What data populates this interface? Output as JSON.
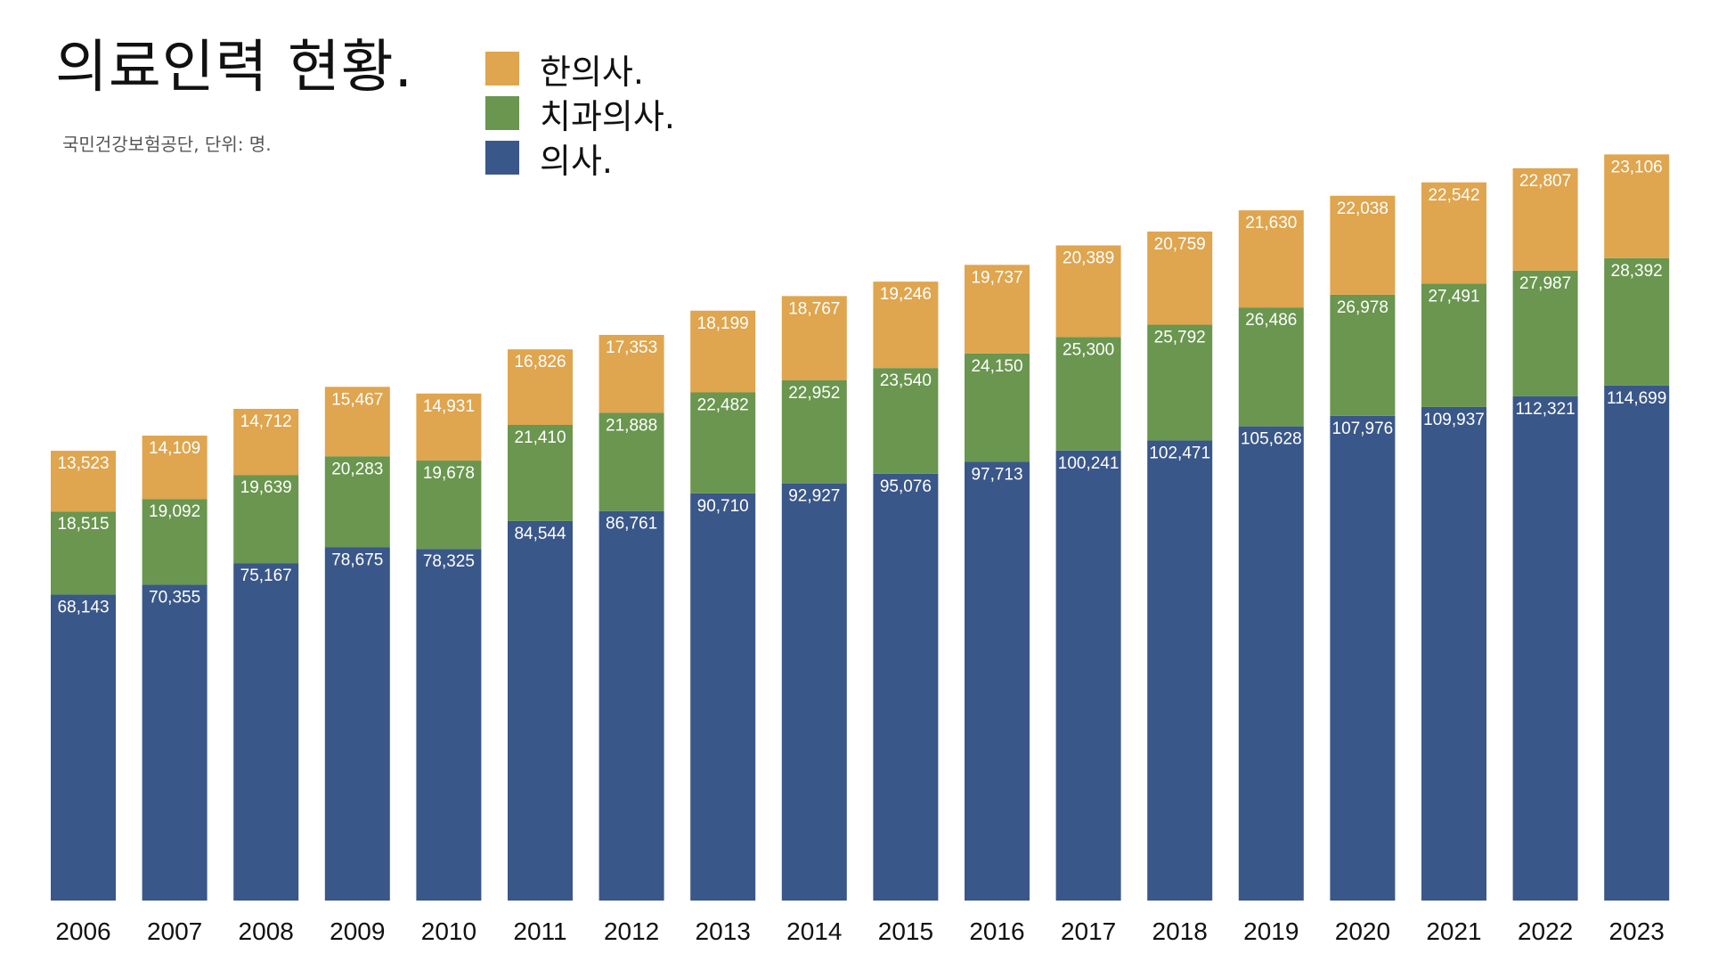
{
  "title": "의료인력 현황.",
  "subtitle": "국민건강보험공단, 단위: 명.",
  "chart_data": {
    "type": "bar",
    "stacked": true,
    "legend_position": "top",
    "grid": false,
    "categories": [
      "2006",
      "2007",
      "2008",
      "2009",
      "2010",
      "2011",
      "2012",
      "2013",
      "2014",
      "2015",
      "2016",
      "2017",
      "2018",
      "2019",
      "2020",
      "2021",
      "2022",
      "2023"
    ],
    "ylim": [
      0,
      170000
    ],
    "series": [
      {
        "name": "의사.",
        "color": "#3a5789",
        "values": [
          68143,
          70355,
          75167,
          78675,
          78325,
          84544,
          86761,
          90710,
          92927,
          95076,
          97713,
          100241,
          102471,
          105628,
          107976,
          109937,
          112321,
          114699
        ],
        "labels": [
          "68,143",
          "70,355",
          "75,167",
          "78,675",
          "78,325",
          "84,544",
          "86,761",
          "90,710",
          "92,927",
          "95,076",
          "97,713",
          "100,241",
          "102,471",
          "105,628",
          "107,976",
          "109,937",
          "112,321",
          "114,699"
        ]
      },
      {
        "name": "치과의사.",
        "color": "#6a964f",
        "values": [
          18515,
          19092,
          19639,
          20283,
          19678,
          21410,
          21888,
          22482,
          22952,
          23540,
          24150,
          25300,
          25792,
          26486,
          26978,
          27491,
          27987,
          28392
        ],
        "labels": [
          "18,515",
          "19,092",
          "19,639",
          "20,283",
          "19,678",
          "21,410",
          "21,888",
          "22,482",
          "22,952",
          "23,540",
          "24,150",
          "25,300",
          "25,792",
          "26,486",
          "26,978",
          "27,491",
          "27,987",
          "28,392"
        ]
      },
      {
        "name": "한의사.",
        "color": "#dfa54f",
        "values": [
          13523,
          14109,
          14712,
          15467,
          14931,
          16826,
          17353,
          18199,
          18767,
          19246,
          19737,
          20389,
          20759,
          21630,
          22038,
          22542,
          22807,
          23106
        ],
        "labels": [
          "13,523",
          "14,109",
          "14,712",
          "15,467",
          "14,931",
          "16,826",
          "17,353",
          "18,199",
          "18,767",
          "19,246",
          "19,737",
          "20,389",
          "20,759",
          "21,630",
          "22,038",
          "22,542",
          "22,807",
          "23,106"
        ]
      }
    ]
  }
}
